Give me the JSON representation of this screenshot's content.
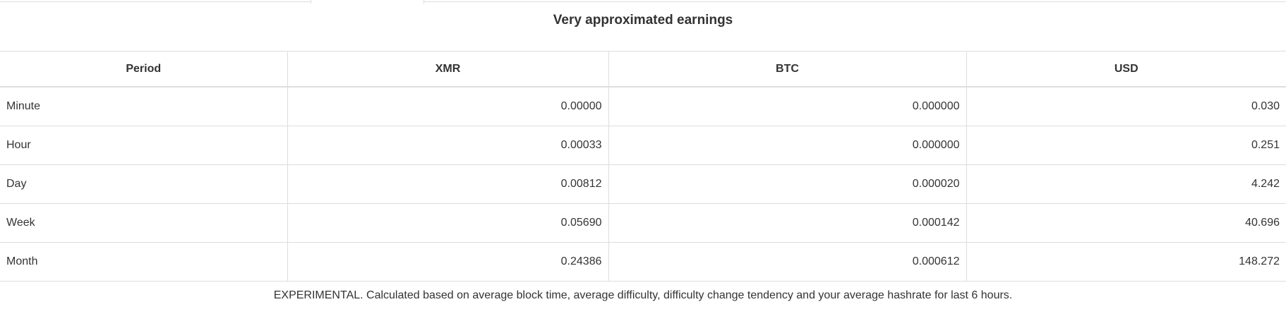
{
  "title": "Very approximated earnings",
  "table": {
    "columns": [
      "Period",
      "XMR",
      "BTC",
      "USD"
    ],
    "rows": [
      {
        "period": "Minute",
        "xmr": "0.00000",
        "btc": "0.000000",
        "usd": "0.030"
      },
      {
        "period": "Hour",
        "xmr": "0.00033",
        "btc": "0.000000",
        "usd": "0.251"
      },
      {
        "period": "Day",
        "xmr": "0.00812",
        "btc": "0.000020",
        "usd": "4.242"
      },
      {
        "period": "Week",
        "xmr": "0.05690",
        "btc": "0.000142",
        "usd": "40.696"
      },
      {
        "period": "Month",
        "xmr": "0.24386",
        "btc": "0.000612",
        "usd": "148.272"
      }
    ]
  },
  "footer": {
    "note": "EXPERIMENTAL. Calculated based on average block time, average difficulty, difficulty change tendency and your average hashrate for last 6 hours."
  },
  "colors": {
    "text": "#333333",
    "border": "#dddddd",
    "background": "#ffffff"
  }
}
